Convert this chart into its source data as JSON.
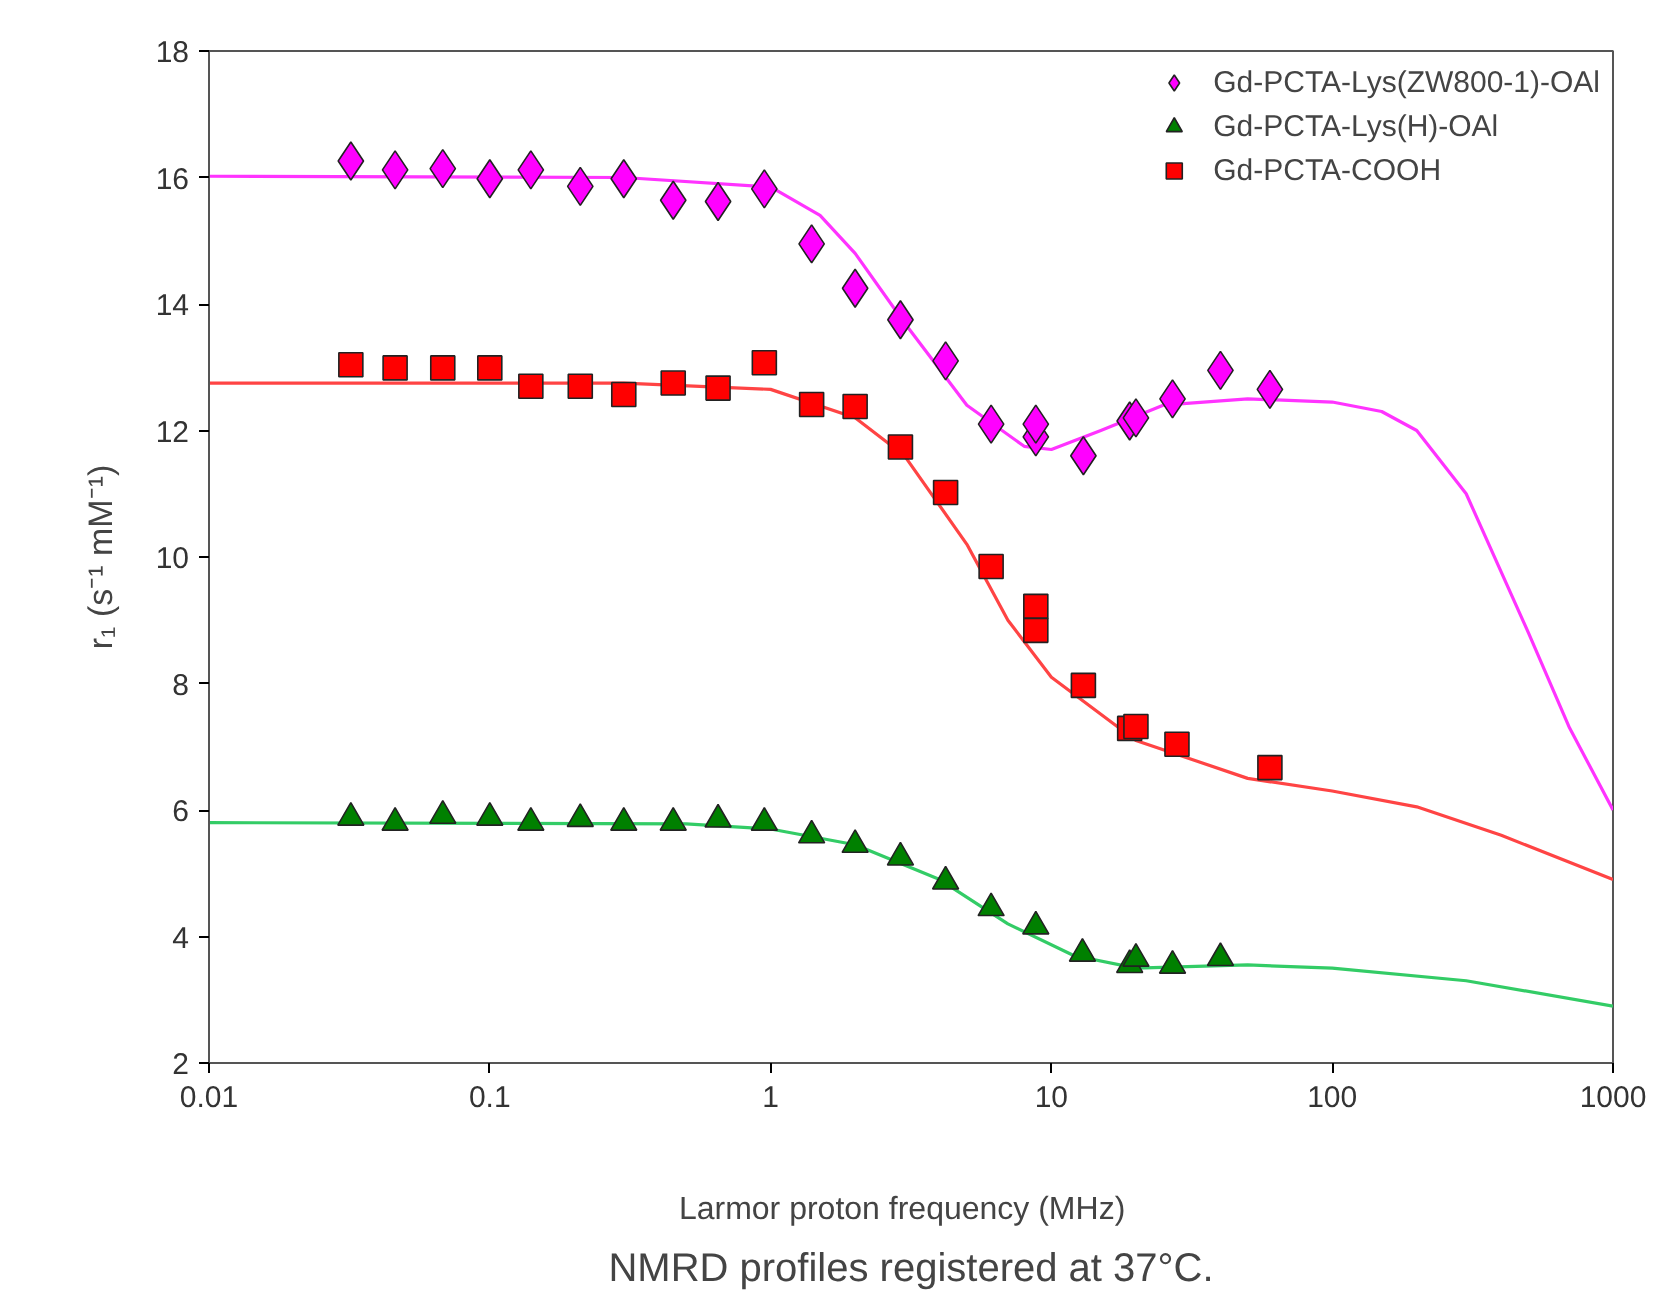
{
  "chart_data": {
    "type": "scatter",
    "title": "NMRD profiles registered at 37°C.",
    "xlabel": "Larmor proton frequency   (MHz)",
    "ylabel": "r₁ (s⁻¹ mM⁻¹)",
    "log": "x",
    "xlim": [
      0.01,
      1000
    ],
    "xticks": [
      0.01,
      0.1,
      1,
      10,
      100,
      1000
    ],
    "ylim": [
      2,
      18
    ],
    "yticks": [
      2,
      4,
      6,
      8,
      10,
      12,
      14,
      16,
      18
    ],
    "grid": false,
    "legend": "top right",
    "series": [
      {
        "name": "Gd-PCTA-Lys(ZW800-1)-OAl",
        "marker": "diamond",
        "color": "#ff00ff",
        "x": [
          0.032,
          0.046,
          0.068,
          0.1,
          0.14,
          0.21,
          0.3,
          0.45,
          0.65,
          0.95,
          1.4,
          2,
          2.9,
          4.2,
          6.1,
          8.8,
          8.8,
          13,
          19,
          20,
          27,
          40,
          60
        ],
        "values": [
          16.26,
          16.12,
          16.14,
          15.98,
          16.12,
          15.86,
          15.98,
          15.64,
          15.62,
          15.82,
          14.95,
          14.25,
          13.75,
          13.1,
          12.1,
          11.9,
          12.1,
          11.6,
          12.15,
          12.2,
          12.5,
          12.95,
          12.65
        ]
      },
      {
        "name": "Gd-PCTA-Lys(H)-OAl",
        "marker": "triangle",
        "color": "#008000",
        "x": [
          0.032,
          0.046,
          0.068,
          0.1,
          0.14,
          0.21,
          0.3,
          0.45,
          0.65,
          0.95,
          1.4,
          2,
          2.9,
          4.2,
          6.1,
          8.8,
          12.9,
          19,
          20,
          27,
          40
        ],
        "values": [
          5.88,
          5.8,
          5.91,
          5.88,
          5.8,
          5.86,
          5.8,
          5.8,
          5.85,
          5.8,
          5.6,
          5.45,
          5.25,
          4.87,
          4.45,
          4.16,
          3.73,
          3.55,
          3.65,
          3.54,
          3.66
        ]
      },
      {
        "name": "Gd-PCTA-COOH",
        "marker": "square",
        "color": "#ff0000",
        "x": [
          0.032,
          0.046,
          0.068,
          0.1,
          0.14,
          0.21,
          0.3,
          0.45,
          0.65,
          0.95,
          1.4,
          2,
          2.9,
          4.2,
          6.1,
          8.8,
          8.8,
          13,
          19,
          20,
          28,
          60
        ],
        "values": [
          13.04,
          12.99,
          12.99,
          12.99,
          12.7,
          12.7,
          12.57,
          12.75,
          12.67,
          13.07,
          12.41,
          12.38,
          11.74,
          11.02,
          9.85,
          9.22,
          8.84,
          7.97,
          7.29,
          7.32,
          7.04,
          6.67
        ]
      },
      {
        "type": "line",
        "marker": "none",
        "color": "#ff33ff",
        "x": [
          0.01,
          0.3,
          1,
          1.5,
          2,
          3,
          5,
          8,
          10,
          15,
          25,
          50,
          100,
          150,
          200,
          300,
          500,
          700,
          1000
        ],
        "values": [
          16.02,
          16.0,
          15.85,
          15.4,
          14.8,
          13.7,
          12.4,
          11.75,
          11.7,
          12.0,
          12.4,
          12.5,
          12.45,
          12.3,
          12.0,
          11.0,
          8.8,
          7.3,
          6.0
        ]
      },
      {
        "type": "line",
        "marker": "none",
        "color": "#ff4444",
        "x": [
          0.01,
          0.3,
          1,
          2,
          3,
          5,
          7,
          10,
          20,
          50,
          100,
          200,
          400,
          1000
        ],
        "values": [
          12.75,
          12.75,
          12.65,
          12.2,
          11.6,
          10.2,
          9.0,
          8.1,
          7.1,
          6.5,
          6.3,
          6.05,
          5.6,
          4.9
        ]
      },
      {
        "type": "line",
        "marker": "none",
        "color": "#33cc66",
        "x": [
          0.01,
          0.5,
          1,
          2,
          4,
          7,
          12,
          20,
          50,
          100,
          300,
          1000
        ],
        "values": [
          5.8,
          5.78,
          5.7,
          5.45,
          4.9,
          4.2,
          3.7,
          3.5,
          3.55,
          3.5,
          3.3,
          2.9
        ]
      }
    ]
  }
}
